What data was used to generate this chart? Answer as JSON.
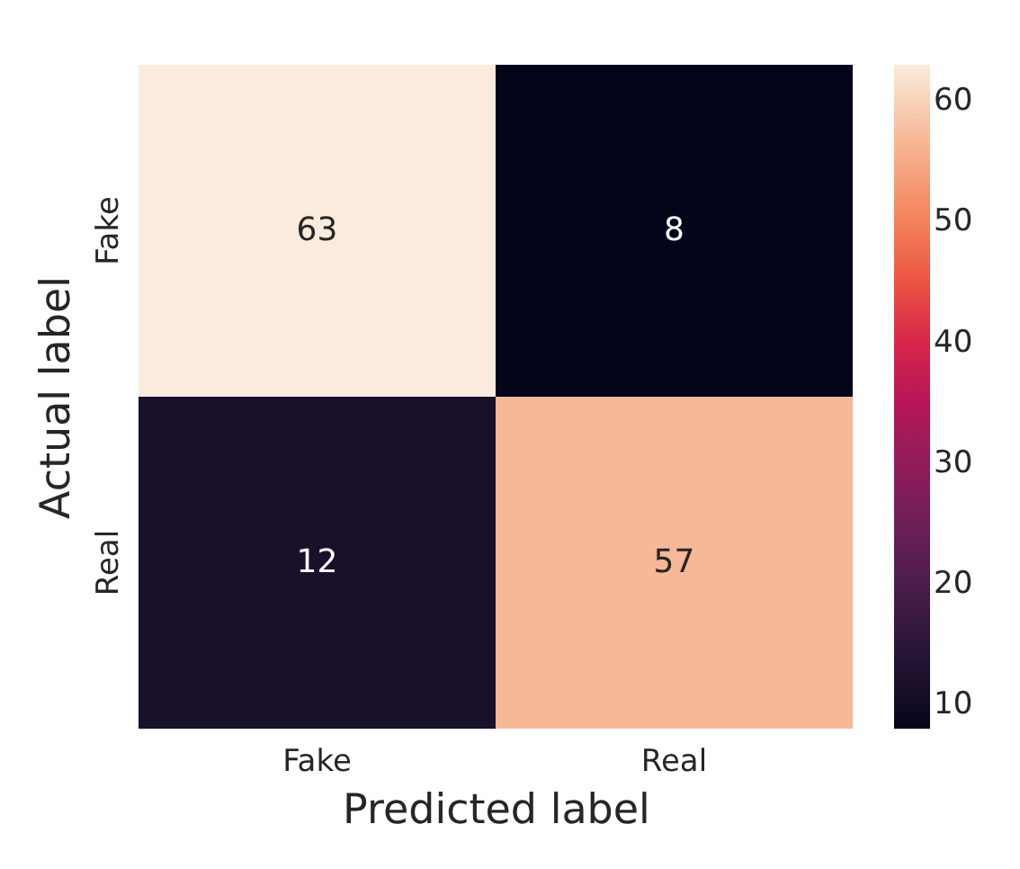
{
  "chart_data": {
    "type": "heatmap",
    "xlabel": "Predicted label",
    "ylabel": "Actual label",
    "categories": [
      "Fake",
      "Real"
    ],
    "y_categories": [
      "Fake",
      "Real"
    ],
    "cells": [
      [
        63,
        8
      ],
      [
        12,
        57
      ]
    ],
    "clim": [
      8,
      63
    ],
    "cticks": [
      10,
      20,
      30,
      40,
      50,
      60
    ],
    "data_labels": true
  }
}
